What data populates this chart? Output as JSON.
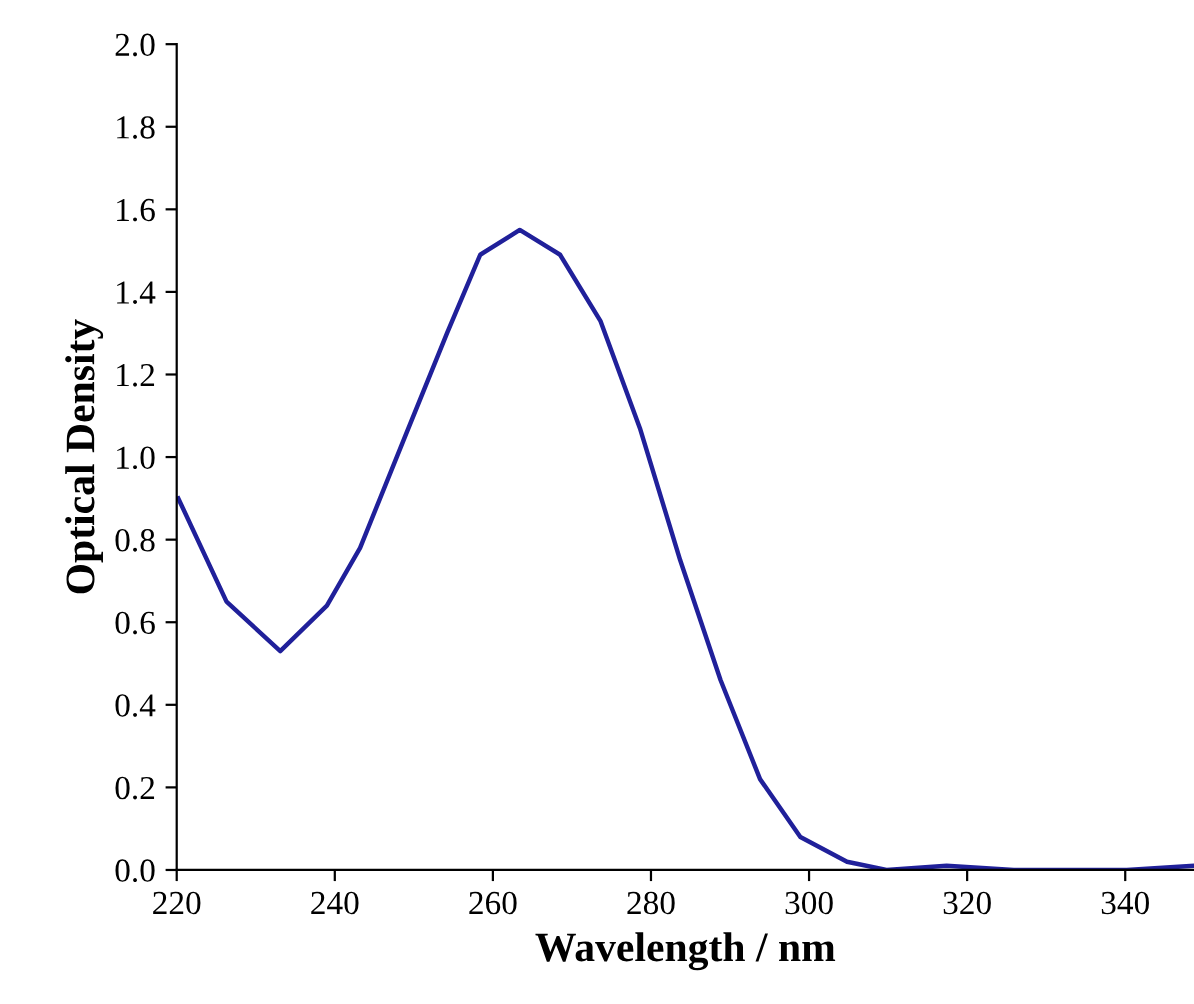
{
  "chart_data": {
    "type": "line",
    "xlabel": "Wavelength / nm",
    "ylabel": "Optical Density",
    "x": [
      220.2,
      226.3,
      233.1,
      239.0,
      243.2,
      249.1,
      254.2,
      258.4,
      263.4,
      268.5,
      273.6,
      278.6,
      283.7,
      288.8,
      293.8,
      298.9,
      304.8,
      309.8,
      317.4,
      325.9,
      333.5,
      340.2,
      348.7
    ],
    "series": [
      {
        "color": "#20209a",
        "values": [
          0.9,
          0.65,
          0.53,
          0.64,
          0.78,
          1.06,
          1.3,
          1.49,
          1.55,
          1.49,
          1.33,
          1.07,
          0.75,
          0.46,
          0.22,
          0.08,
          0.02,
          0.0,
          0.01,
          0.0,
          0.0,
          0.0,
          0.01
        ]
      }
    ],
    "xlim": [
      220,
      348.7
    ],
    "xticks": [
      220,
      240,
      260,
      280,
      300,
      320,
      340
    ],
    "ylim": [
      0,
      2.0
    ],
    "yticks": [
      {
        "value": 0,
        "label": "0.0"
      },
      {
        "value": 0.2,
        "label": "0.2"
      },
      {
        "value": 0.4,
        "label": "0.4"
      },
      {
        "value": 0.6,
        "label": "0.6"
      },
      {
        "value": 0.8,
        "label": "0.8"
      },
      {
        "value": 1.0,
        "label": "1.0"
      },
      {
        "value": 1.2,
        "label": "1.2"
      },
      {
        "value": 1.4,
        "label": "1.4"
      },
      {
        "value": 1.6,
        "label": "1.6"
      },
      {
        "value": 1.8,
        "label": "1.8"
      },
      {
        "value": 2.0,
        "label": "2.0"
      }
    ],
    "grid": false,
    "legend": false,
    "marker": "none",
    "line_style": "solid"
  }
}
